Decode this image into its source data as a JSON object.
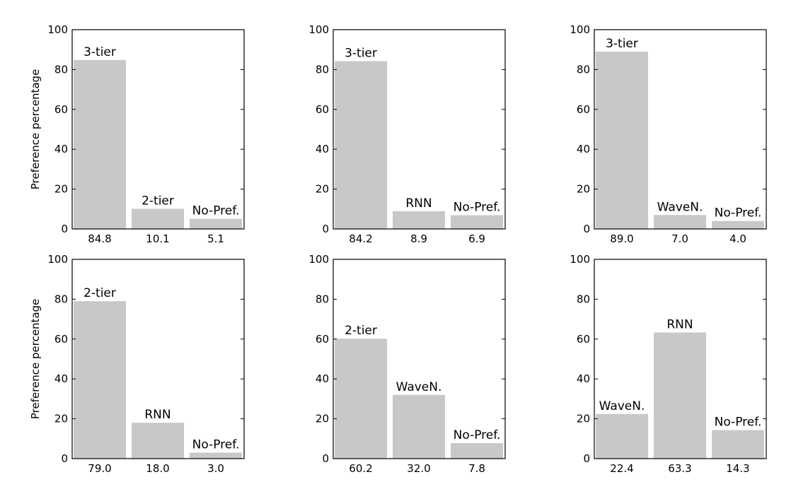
{
  "chart_data": [
    {
      "type": "bar",
      "ylabel": "Preference percentage",
      "ylim": [
        0,
        100
      ],
      "yticks": [
        0,
        20,
        40,
        60,
        80,
        100
      ],
      "categories": [
        "84.8",
        "10.1",
        "5.1"
      ],
      "bar_labels": [
        "3-tier",
        "2-tier",
        "No-Pref."
      ],
      "values": [
        84.8,
        10.1,
        5.1
      ],
      "bar_color": "#c8c8c8"
    },
    {
      "type": "bar",
      "ylabel": "",
      "ylim": [
        0,
        100
      ],
      "yticks": [
        0,
        20,
        40,
        60,
        80,
        100
      ],
      "categories": [
        "84.2",
        "8.9",
        "6.9"
      ],
      "bar_labels": [
        "3-tier",
        "RNN",
        "No-Pref."
      ],
      "values": [
        84.2,
        8.9,
        6.9
      ],
      "bar_color": "#c8c8c8"
    },
    {
      "type": "bar",
      "ylabel": "",
      "ylim": [
        0,
        100
      ],
      "yticks": [
        0,
        20,
        40,
        60,
        80,
        100
      ],
      "categories": [
        "89.0",
        "7.0",
        "4.0"
      ],
      "bar_labels": [
        "3-tier",
        "WaveN.",
        "No-Pref."
      ],
      "values": [
        89.0,
        7.0,
        4.0
      ],
      "bar_color": "#c8c8c8"
    },
    {
      "type": "bar",
      "ylabel": "Preference percentage",
      "ylim": [
        0,
        100
      ],
      "yticks": [
        0,
        20,
        40,
        60,
        80,
        100
      ],
      "categories": [
        "79.0",
        "18.0",
        "3.0"
      ],
      "bar_labels": [
        "2-tier",
        "RNN",
        "No-Pref."
      ],
      "values": [
        79.0,
        18.0,
        3.0
      ],
      "bar_color": "#c8c8c8"
    },
    {
      "type": "bar",
      "ylabel": "",
      "ylim": [
        0,
        100
      ],
      "yticks": [
        0,
        20,
        40,
        60,
        80,
        100
      ],
      "categories": [
        "60.2",
        "32.0",
        "7.8"
      ],
      "bar_labels": [
        "2-tier",
        "WaveN.",
        "No-Pref."
      ],
      "values": [
        60.2,
        32.0,
        7.8
      ],
      "bar_color": "#c8c8c8"
    },
    {
      "type": "bar",
      "ylabel": "",
      "ylim": [
        0,
        100
      ],
      "yticks": [
        0,
        20,
        40,
        60,
        80,
        100
      ],
      "categories": [
        "22.4",
        "63.3",
        "14.3"
      ],
      "bar_labels": [
        "WaveN.",
        "RNN",
        "No-Pref."
      ],
      "values": [
        22.4,
        63.3,
        14.3
      ],
      "bar_color": "#c8c8c8"
    }
  ]
}
